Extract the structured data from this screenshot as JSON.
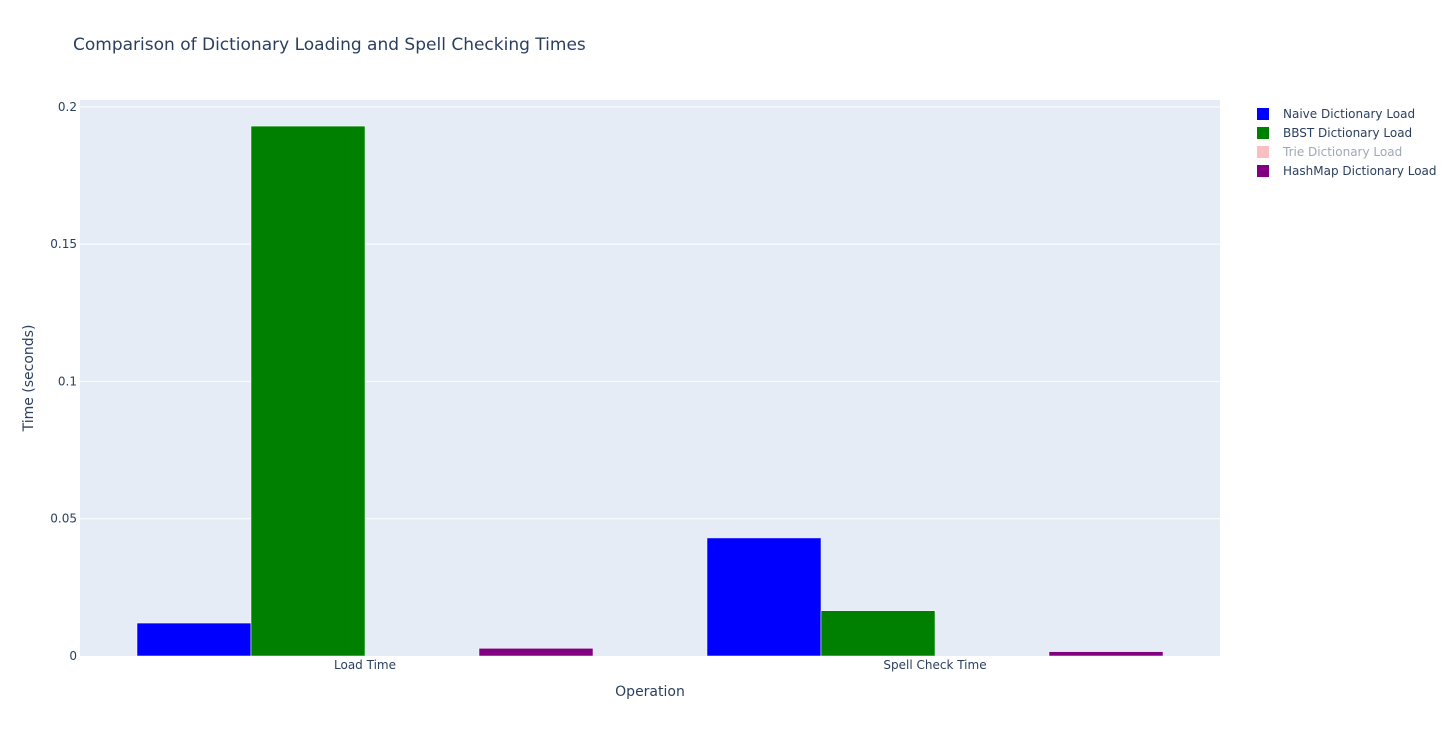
{
  "chart_data": {
    "type": "bar",
    "title": "Comparison of Dictionary Loading and Spell Checking Times",
    "xlabel": "Operation",
    "ylabel": "Time (seconds)",
    "categories": [
      "Load Time",
      "Spell Check Time"
    ],
    "ylim": [
      0,
      0.2025
    ],
    "yticks": [
      0,
      0.05,
      0.1,
      0.15,
      0.2
    ],
    "ytick_labels": [
      "0",
      "0.05",
      "0.1",
      "0.15",
      "0.2"
    ],
    "grid": true,
    "legend_position": "top-right",
    "series": [
      {
        "name": "Naive Dictionary Load",
        "color": "#0000ff",
        "values": [
          0.012,
          0.043
        ],
        "visible": true
      },
      {
        "name": "BBST Dictionary Load",
        "color": "#008000",
        "values": [
          0.193,
          0.0165
        ],
        "visible": true
      },
      {
        "name": "Trie Dictionary Load",
        "color": "#f08080",
        "values": [
          0,
          0
        ],
        "visible": false
      },
      {
        "name": "HashMap Dictionary Load",
        "color": "#800080",
        "values": [
          0.0028,
          0.0016
        ],
        "visible": true
      }
    ]
  }
}
